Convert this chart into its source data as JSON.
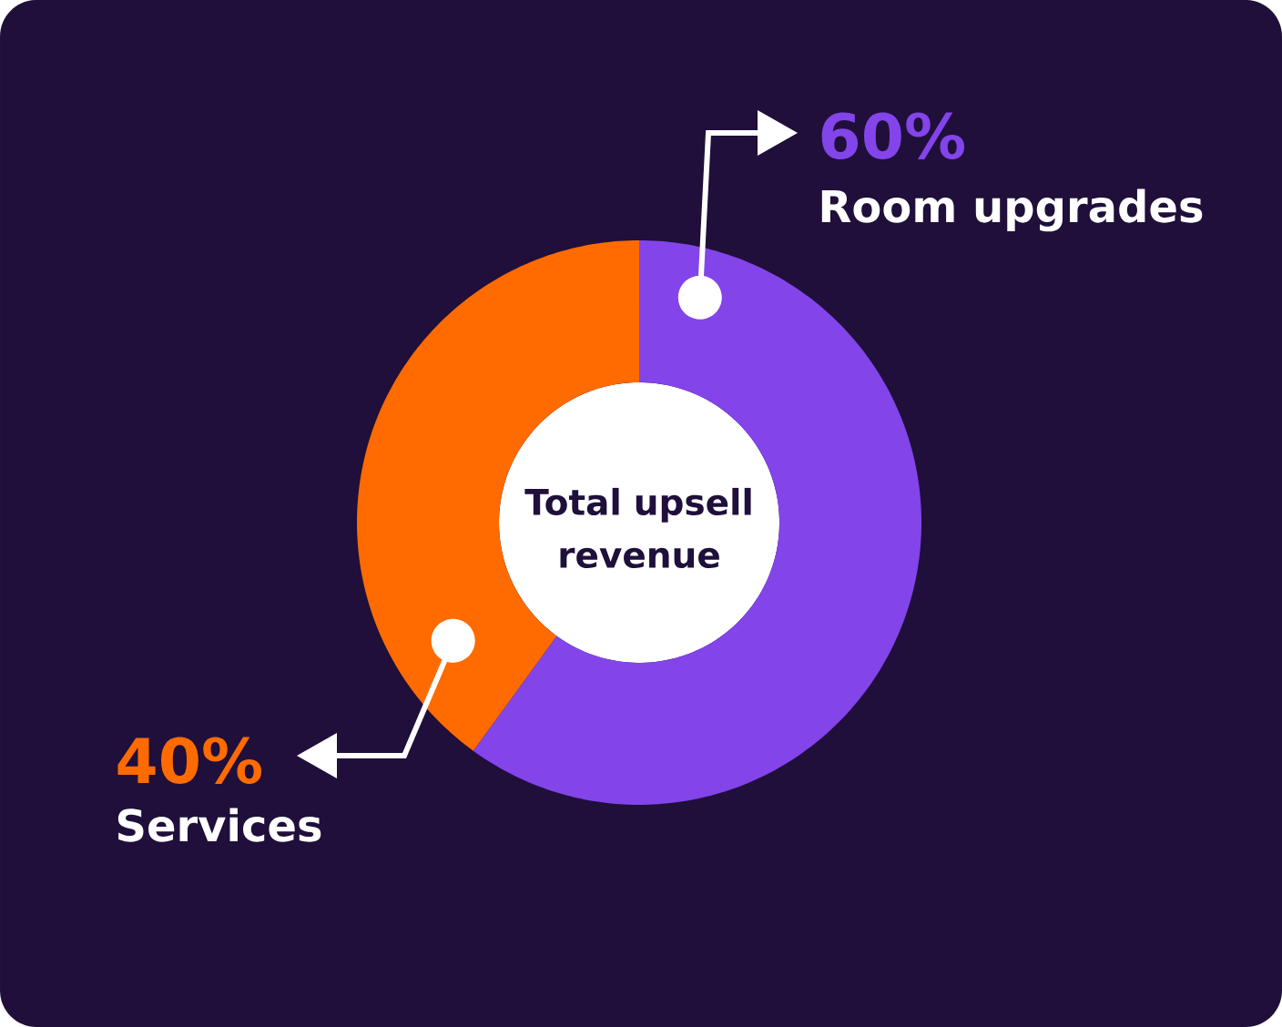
{
  "chart_data": {
    "type": "donut",
    "title": "Total upsell revenue",
    "categories": [
      "Room upgrades",
      "Services"
    ],
    "values": [
      60,
      40
    ],
    "colors": [
      "#8344ea",
      "#ff6b00"
    ],
    "value_labels": [
      "60%",
      "40%"
    ]
  }
}
